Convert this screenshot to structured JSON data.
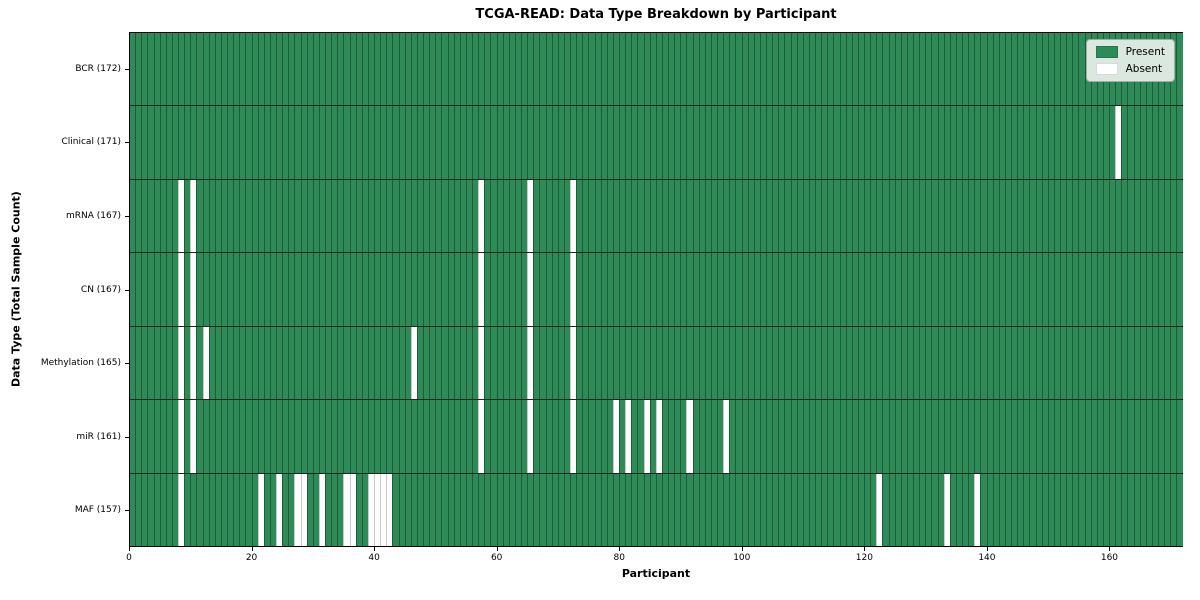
{
  "chart_data": {
    "type": "heatmap",
    "title": "TCGA-READ: Data Type Breakdown by Participant",
    "xlabel": "Participant",
    "ylabel": "Data Type (Total Sample Count)",
    "x_range": [
      0,
      172
    ],
    "n_participants": 172,
    "x_ticks": [
      0,
      20,
      40,
      60,
      80,
      100,
      120,
      140,
      160
    ],
    "grid": "cell-edges-only",
    "legend_position": "upper-right",
    "legend": [
      {
        "label": "Present",
        "color": "#2e8b57"
      },
      {
        "label": "Absent",
        "color": "#ffffff"
      }
    ],
    "colors": {
      "present_fill": "#2e8b57",
      "present_edge": "#1d5c38",
      "absent_fill": "#ffffff",
      "row_separator": "#16281c",
      "plot_border": "#000000"
    },
    "rows": [
      {
        "label": "BCR (172)",
        "total_sample_count": 172,
        "absent_participants": []
      },
      {
        "label": "Clinical (171)",
        "total_sample_count": 171,
        "absent_participants": [
          161
        ]
      },
      {
        "label": "mRNA (167)",
        "total_sample_count": 167,
        "absent_participants": [
          8,
          10,
          57,
          65,
          72
        ]
      },
      {
        "label": "CN (167)",
        "total_sample_count": 167,
        "absent_participants": [
          8,
          10,
          57,
          65,
          72
        ]
      },
      {
        "label": "Methylation (165)",
        "total_sample_count": 165,
        "absent_participants": [
          8,
          10,
          12,
          46,
          57,
          65,
          72
        ]
      },
      {
        "label": "miR (161)",
        "total_sample_count": 161,
        "absent_participants": [
          8,
          10,
          57,
          65,
          72,
          79,
          81,
          84,
          86,
          91,
          97
        ]
      },
      {
        "label": "MAF (157)",
        "total_sample_count": 157,
        "absent_participants": [
          8,
          21,
          24,
          27,
          28,
          31,
          35,
          36,
          39,
          40,
          41,
          42,
          122,
          133,
          138
        ]
      }
    ]
  }
}
